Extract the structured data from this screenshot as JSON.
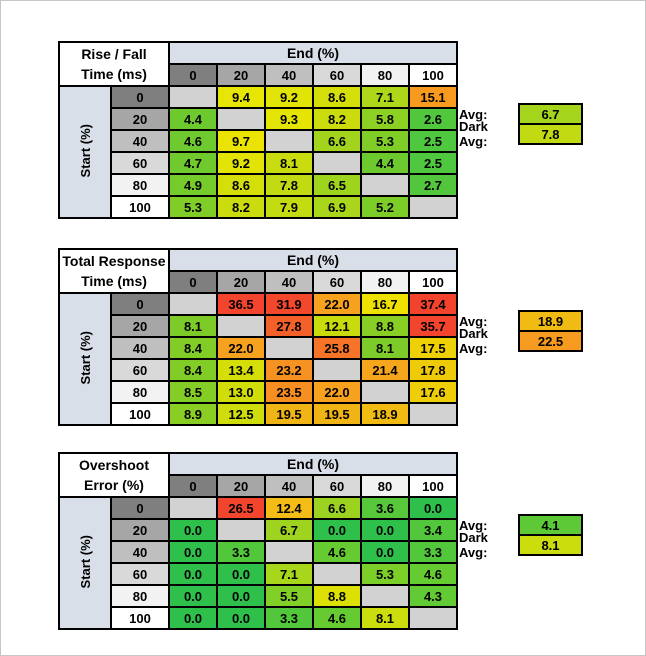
{
  "canvas": {
    "bg": "#FFFFFF",
    "frame_color": "#C6C6C6"
  },
  "palette": {
    "band_bg": "#D9DFE8",
    "diagonal_bg": "#D2D2D2",
    "grid_color": "#000000",
    "text_color": "#000000",
    "gray_ramp": [
      "#7F7F7F",
      "#A6A6A6",
      "#BFBFBF",
      "#D9D9D9",
      "#F2F2F2",
      "#FFFFFF"
    ]
  },
  "chart_data": [
    {
      "type": "heatmap",
      "title_line1": "Rise / Fall",
      "title_line2": "Time (ms)",
      "col_axis_label": "End (%)",
      "row_axis_label": "Start (%)",
      "columns": [
        "0",
        "20",
        "40",
        "60",
        "80",
        "100"
      ],
      "rows": [
        "0",
        "20",
        "40",
        "60",
        "80",
        "100"
      ],
      "values": [
        [
          null,
          9.4,
          9.2,
          8.6,
          7.1,
          15.1
        ],
        [
          4.4,
          null,
          9.3,
          8.2,
          5.8,
          2.6
        ],
        [
          4.6,
          9.7,
          null,
          6.6,
          5.3,
          2.5
        ],
        [
          4.7,
          9.2,
          8.1,
          null,
          4.4,
          2.5
        ],
        [
          4.9,
          8.6,
          7.8,
          6.5,
          null,
          2.7
        ],
        [
          5.3,
          8.2,
          7.9,
          6.9,
          5.2,
          null
        ]
      ],
      "avg_label": "Avg:",
      "avg": 6.7,
      "dark_avg_label": "Dark Avg:",
      "dark_avg": 7.8,
      "color_stops": [
        [
          2.5,
          "#4FC73F"
        ],
        [
          4.7,
          "#70CA2D"
        ],
        [
          5.9,
          "#90D023"
        ],
        [
          7.0,
          "#ACD71A"
        ],
        [
          8.0,
          "#C6DB10"
        ],
        [
          9.5,
          "#E9E602"
        ],
        [
          12.3,
          "#F2C00F"
        ],
        [
          15.1,
          "#F79A1E"
        ]
      ]
    },
    {
      "type": "heatmap",
      "title_line1": "Total Response",
      "title_line2": "Time (ms)",
      "col_axis_label": "End (%)",
      "row_axis_label": "Start (%)",
      "columns": [
        "0",
        "20",
        "40",
        "60",
        "80",
        "100"
      ],
      "rows": [
        "0",
        "20",
        "40",
        "60",
        "80",
        "100"
      ],
      "values": [
        [
          null,
          36.5,
          31.9,
          22.0,
          16.7,
          37.4
        ],
        [
          8.1,
          null,
          27.8,
          12.1,
          8.8,
          35.7
        ],
        [
          8.4,
          22.0,
          null,
          25.8,
          8.1,
          17.5
        ],
        [
          8.4,
          13.4,
          23.2,
          null,
          21.4,
          17.8
        ],
        [
          8.5,
          13.0,
          23.5,
          22.0,
          null,
          17.6
        ],
        [
          8.9,
          12.5,
          19.5,
          19.5,
          18.9,
          null
        ]
      ],
      "avg_label": "Avg:",
      "avg": 18.9,
      "dark_avg_label": "Dark Avg:",
      "dark_avg": 22.5,
      "color_stops": [
        [
          8.1,
          "#7CCB29"
        ],
        [
          12.3,
          "#CCDD0B"
        ],
        [
          16.7,
          "#EEE000"
        ],
        [
          17.6,
          "#EECE08"
        ],
        [
          19.2,
          "#F0B614"
        ],
        [
          22.0,
          "#F7A21F"
        ],
        [
          23.4,
          "#F68F22"
        ],
        [
          25.8,
          "#F57427"
        ],
        [
          27.8,
          "#F4602A"
        ],
        [
          31.9,
          "#F3482C"
        ],
        [
          37.4,
          "#F3432D"
        ]
      ]
    },
    {
      "type": "heatmap",
      "title_line1": "Overshoot",
      "title_line2": "Error (%)",
      "col_axis_label": "End (%)",
      "row_axis_label": "Start (%)",
      "columns": [
        "0",
        "20",
        "40",
        "60",
        "80",
        "100"
      ],
      "rows": [
        "0",
        "20",
        "40",
        "60",
        "80",
        "100"
      ],
      "values": [
        [
          null,
          26.5,
          12.4,
          6.6,
          3.6,
          0.0
        ],
        [
          0.0,
          null,
          6.7,
          0.0,
          0.0,
          3.4
        ],
        [
          0.0,
          3.3,
          null,
          4.6,
          0.0,
          3.3
        ],
        [
          0.0,
          0.0,
          7.1,
          null,
          5.3,
          4.6
        ],
        [
          0.0,
          0.0,
          5.5,
          8.8,
          null,
          4.3
        ],
        [
          0.0,
          0.0,
          3.3,
          4.6,
          8.1,
          null
        ]
      ],
      "avg_label": "Avg:",
      "avg": 4.1,
      "dark_avg_label": "Dark Avg:",
      "dark_avg": 8.1,
      "color_stops": [
        [
          0.0,
          "#2FBF4B"
        ],
        [
          3.4,
          "#53C73C"
        ],
        [
          4.6,
          "#66CB31"
        ],
        [
          5.5,
          "#82CF27"
        ],
        [
          6.7,
          "#9ED31F"
        ],
        [
          7.1,
          "#A8D61B"
        ],
        [
          8.3,
          "#D2DE09"
        ],
        [
          8.8,
          "#DCE005"
        ],
        [
          12.4,
          "#F4BC16"
        ],
        [
          19.0,
          "#F48021"
        ],
        [
          26.5,
          "#F2452D"
        ]
      ]
    }
  ]
}
